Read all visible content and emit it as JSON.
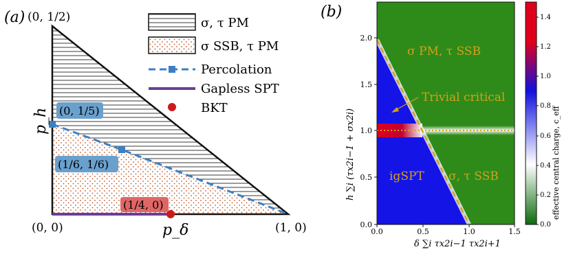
{
  "panel_a": {
    "label": "(a)",
    "vertex_top": "(0, 1/2)",
    "vertex_origin": "(0, 0)",
    "vertex_right": "(1, 0)",
    "axis_y": "p_h",
    "axis_x": "p_δ",
    "annotations": [
      {
        "text": "(0, 1/5)",
        "color": "#6aa0cc"
      },
      {
        "text": "(1/6, 1/6)",
        "color": "#6aa0cc"
      },
      {
        "text": "(1/4, 0)",
        "color": "#e06666"
      }
    ],
    "legend": [
      {
        "label": "σ, τ PM",
        "kind": "hatch-lines"
      },
      {
        "label": "σ SSB, τ PM",
        "kind": "dots"
      },
      {
        "label": "Percolation",
        "kind": "dashed-line-square",
        "color": "#3b7fc4"
      },
      {
        "label": "Gapless SPT",
        "kind": "line",
        "color": "#6a3d9a"
      },
      {
        "label": "BKT",
        "kind": "dot",
        "color": "#cc1a1a"
      }
    ],
    "percolation_line": [
      [
        0,
        0.2
      ],
      [
        0.1667,
        0.1667
      ],
      [
        1,
        0
      ]
    ],
    "gapless_spt_segment": [
      [
        0,
        0
      ],
      [
        0.25,
        0
      ]
    ],
    "bkt_point": [
      0.25,
      0
    ]
  },
  "panel_b": {
    "label": "(b)",
    "regions": [
      "σ PM, τ SSB",
      "Trivial critical",
      "igSPT",
      "σ, τ SSB"
    ],
    "xlabel": "δ ∑i τx2i−1 τx2i+1",
    "ylabel": "h ∑i (τx2i−1 + σx2i)",
    "colorbar_label": "effective central charge, c_eff",
    "colors": {
      "green": "#2e8b1a",
      "blue": "#1414e6",
      "red": "#e0001a",
      "orange": "#d4a01a"
    },
    "chart_data": {
      "type": "heatmap",
      "xlim": [
        0.0,
        1.5
      ],
      "ylim": [
        0.0,
        2.2
      ],
      "x_ticks": [
        "0.0",
        "0.5",
        "1.0",
        "1.5"
      ],
      "y_ticks": [
        "0.0",
        "0.5",
        "1.0",
        "1.5",
        "2.0"
      ],
      "colorbar_range": [
        0.0,
        1.5
      ],
      "colorbar_ticks": [
        "0.0",
        "0.2",
        "0.4",
        "0.6",
        "0.8",
        "1.0",
        "1.2",
        "1.4"
      ],
      "phase_boundary": [
        [
          0.0,
          2.0
        ],
        [
          1.0,
          0.0
        ]
      ],
      "critical_line_y": 1.0
    }
  }
}
